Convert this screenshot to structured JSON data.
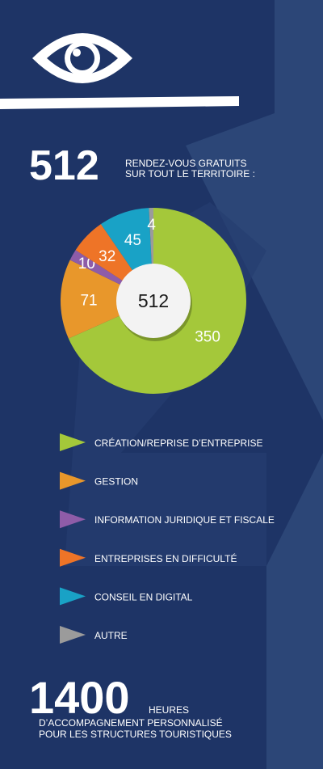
{
  "header": {
    "count": "512",
    "line1": "RENDEZ-VOUS GRATUITS",
    "line2": "SUR TOUT LE TERRITOIRE :"
  },
  "chart_data": {
    "type": "donut",
    "center_label": "512",
    "categories": [
      "CRÉATION/REPRISE D’ENTREPRISE",
      "GESTION",
      "INFORMATION JURIDIQUE ET FISCALE",
      "ENTREPRISES EN DIFFICULTÉ",
      "CONSEIL EN DIGITAL",
      "AUTRE"
    ],
    "values": [
      350,
      71,
      10,
      32,
      45,
      4
    ],
    "colors": [
      "#a4c83a",
      "#e8972b",
      "#8e5ca8",
      "#ee7427",
      "#19a2c6",
      "#9b9b9b"
    ]
  },
  "footer": {
    "count": "1400",
    "unit": "HEURES",
    "line1": "D’ACCOMPAGNEMENT PERSONNALISÉ",
    "line2": "POUR LES STRUCTURES TOURISTIQUES"
  }
}
